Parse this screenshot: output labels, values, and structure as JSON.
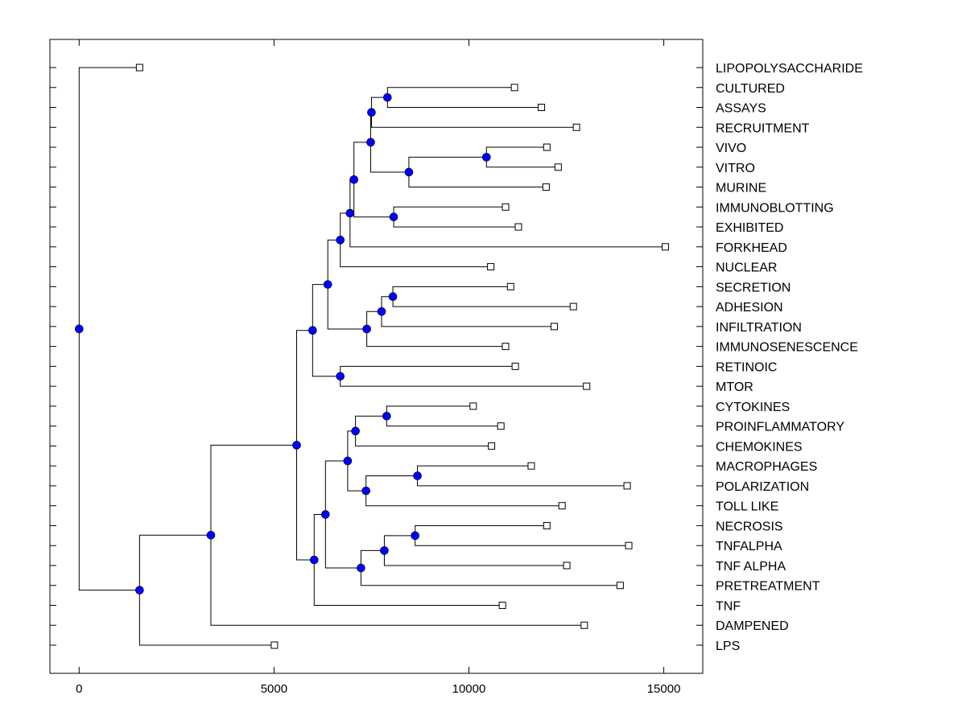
{
  "chart_data": {
    "type": "dendrogram",
    "title": "",
    "xlabel": "",
    "ylabel": "",
    "xlim": [
      -750,
      16000
    ],
    "x_ticks": [
      0,
      5000,
      10000,
      15000
    ],
    "x_tick_labels": [
      "0",
      "5000",
      "10000",
      "15000"
    ],
    "grid": false,
    "node_color": "#0000ff",
    "leaves": [
      {
        "label": "LIPOPOLYSACCHARIDE",
        "x": 1550
      },
      {
        "label": "CULTURED",
        "x": 11170
      },
      {
        "label": "ASSAYS",
        "x": 11860
      },
      {
        "label": "RECRUITMENT",
        "x": 12760
      },
      {
        "label": "VIVO",
        "x": 12000
      },
      {
        "label": "VITRO",
        "x": 12290
      },
      {
        "label": "MURINE",
        "x": 11980
      },
      {
        "label": "IMMUNOBLOTTING",
        "x": 10940
      },
      {
        "label": "EXHIBITED",
        "x": 11270
      },
      {
        "label": "FORKHEAD",
        "x": 15040
      },
      {
        "label": "NUCLEAR",
        "x": 10560
      },
      {
        "label": "SECRETION",
        "x": 11070
      },
      {
        "label": "ADHESION",
        "x": 12680
      },
      {
        "label": "INFILTRATION",
        "x": 12190
      },
      {
        "label": "IMMUNOSENESCENCE",
        "x": 10940
      },
      {
        "label": "RETINOIC",
        "x": 11190
      },
      {
        "label": "MTOR",
        "x": 13020
      },
      {
        "label": "CYTOKINES",
        "x": 10110
      },
      {
        "label": "PROINFLAMMATORY",
        "x": 10820
      },
      {
        "label": "CHEMOKINES",
        "x": 10580
      },
      {
        "label": "MACROPHAGES",
        "x": 11600
      },
      {
        "label": "POLARIZATION",
        "x": 14060
      },
      {
        "label": "TOLL LIKE",
        "x": 12390
      },
      {
        "label": "NECROSIS",
        "x": 12000
      },
      {
        "label": "TNFALPHA",
        "x": 14100
      },
      {
        "label": "TNF ALPHA",
        "x": 12510
      },
      {
        "label": "PRETREATMENT",
        "x": 13880
      },
      {
        "label": "TNF",
        "x": 10860
      },
      {
        "label": "DAMPENED",
        "x": 12960
      },
      {
        "label": "LPS",
        "x": 5010
      }
    ],
    "nodes": [
      {
        "id": "n_cult_assay",
        "x": 7910,
        "children": [
          "L1",
          "L2"
        ]
      },
      {
        "id": "n_assay_recr",
        "x": 7500,
        "children": [
          "n_cult_assay",
          "L3"
        ]
      },
      {
        "id": "n_vivo_vitro",
        "x": 10450,
        "children": [
          "L4",
          "L5"
        ]
      },
      {
        "id": "n_vivo_murine",
        "x": 8460,
        "children": [
          "n_vivo_vitro",
          "L6"
        ]
      },
      {
        "id": "n_a",
        "x": 7480,
        "children": [
          "n_assay_recr",
          "n_vivo_murine"
        ]
      },
      {
        "id": "n_immuno_exh",
        "x": 8070,
        "children": [
          "L7",
          "L8"
        ]
      },
      {
        "id": "n_b",
        "x": 7050,
        "children": [
          "n_a",
          "n_immuno_exh"
        ]
      },
      {
        "id": "n_c",
        "x": 6950,
        "children": [
          "n_b",
          "L9"
        ]
      },
      {
        "id": "n_d",
        "x": 6700,
        "children": [
          "n_c",
          "L10"
        ]
      },
      {
        "id": "n_secr_adh",
        "x": 8050,
        "children": [
          "L11",
          "L12"
        ]
      },
      {
        "id": "n_secr_inf",
        "x": 7760,
        "children": [
          "n_secr_adh",
          "L13"
        ]
      },
      {
        "id": "n_secr_imm",
        "x": 7380,
        "children": [
          "n_secr_inf",
          "L14"
        ]
      },
      {
        "id": "n_e",
        "x": 6380,
        "children": [
          "n_d",
          "n_secr_imm"
        ]
      },
      {
        "id": "n_ret_mtor",
        "x": 6700,
        "children": [
          "L15",
          "L16"
        ]
      },
      {
        "id": "n_upper",
        "x": 5990,
        "children": [
          "n_e",
          "n_ret_mtor"
        ]
      },
      {
        "id": "n_cyt_pro",
        "x": 7890,
        "children": [
          "L17",
          "L18"
        ]
      },
      {
        "id": "n_cyt_chem",
        "x": 7090,
        "children": [
          "n_cyt_pro",
          "L19"
        ]
      },
      {
        "id": "n_mac_pol",
        "x": 8680,
        "children": [
          "L20",
          "L21"
        ]
      },
      {
        "id": "n_mac_toll",
        "x": 7360,
        "children": [
          "n_mac_pol",
          "L22"
        ]
      },
      {
        "id": "n_f",
        "x": 6890,
        "children": [
          "n_cyt_chem",
          "n_mac_toll"
        ]
      },
      {
        "id": "n_nec_tnfa",
        "x": 8620,
        "children": [
          "L23",
          "L24"
        ]
      },
      {
        "id": "n_nec_tnf2",
        "x": 7830,
        "children": [
          "n_nec_tnfa",
          "L25"
        ]
      },
      {
        "id": "n_nec_pre",
        "x": 7230,
        "children": [
          "n_nec_tnf2",
          "L26"
        ]
      },
      {
        "id": "n_g",
        "x": 6320,
        "children": [
          "n_f",
          "n_nec_pre"
        ]
      },
      {
        "id": "n_lower",
        "x": 6030,
        "children": [
          "n_g",
          "L27"
        ]
      },
      {
        "id": "n_h",
        "x": 5580,
        "children": [
          "n_upper",
          "n_lower"
        ]
      },
      {
        "id": "n_i",
        "x": 3380,
        "children": [
          "n_h",
          "L28"
        ]
      },
      {
        "id": "n_j",
        "x": 1550,
        "children": [
          "n_i",
          "L29"
        ]
      },
      {
        "id": "n_root",
        "x": 0,
        "children": [
          "L0",
          "n_j"
        ]
      }
    ]
  }
}
